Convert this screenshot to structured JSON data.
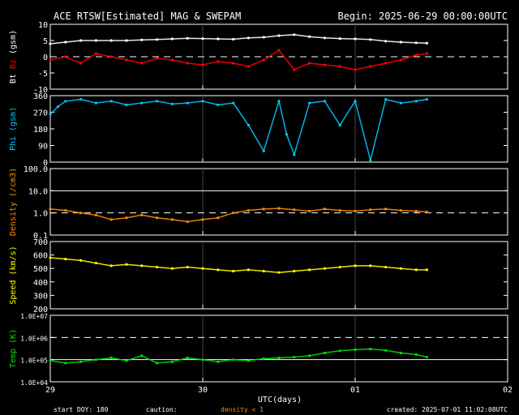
{
  "header": {
    "title": "ACE RTSW[Estimated] MAG & SWEPAM",
    "begin": "Begin: 2025-06-29 00:00:00UTC"
  },
  "footer": {
    "start_doy": "start DOY: 180",
    "caution": "caution:",
    "density_note": "density < 1",
    "created": "created: 2025-07-01 11:02:08UTC"
  },
  "colors": {
    "background": "#000000",
    "axis": "#ffffff",
    "bt": "#ffffff",
    "bz": "#ff0000",
    "phi": "#00c8ff",
    "density": "#ff8c00",
    "speed": "#ffff00",
    "temp": "#00e000"
  },
  "chart_data": [
    {
      "type": "scatter",
      "panel": "mag",
      "ylabel": [
        "Bt",
        "Bz",
        "(gsm)"
      ],
      "ylim": [
        -10,
        10
      ],
      "yticks": [
        "10",
        "5",
        "0",
        "-5",
        "-10"
      ],
      "ytick_values": [
        10,
        5,
        0,
        -5,
        -10
      ],
      "reference_lines": [
        {
          "y": 0,
          "style": "dashed"
        }
      ],
      "series": [
        {
          "name": "Bt",
          "color": "#ffffff",
          "x": [
            0,
            0.1,
            0.2,
            0.3,
            0.4,
            0.5,
            0.6,
            0.7,
            0.8,
            0.9,
            1.0,
            1.1,
            1.2,
            1.3,
            1.4,
            1.5,
            1.6,
            1.7,
            1.8,
            1.9,
            2.0,
            2.1,
            2.2,
            2.3,
            2.4,
            2.47
          ],
          "values": [
            4,
            4.5,
            5,
            5,
            5,
            5,
            5.2,
            5.3,
            5.5,
            5.7,
            5.6,
            5.5,
            5.4,
            5.8,
            6,
            6.5,
            6.8,
            6.2,
            5.8,
            5.6,
            5.5,
            5.3,
            4.8,
            4.5,
            4.3,
            4.2
          ]
        },
        {
          "name": "Bz",
          "color": "#ff0000",
          "x": [
            0,
            0.1,
            0.2,
            0.3,
            0.4,
            0.5,
            0.6,
            0.7,
            0.8,
            0.9,
            1.0,
            1.1,
            1.2,
            1.3,
            1.4,
            1.5,
            1.6,
            1.7,
            1.8,
            1.9,
            2.0,
            2.1,
            2.2,
            2.3,
            2.4,
            2.47
          ],
          "values": [
            -1,
            0,
            -2,
            1,
            0,
            -1,
            -2,
            -0.5,
            -1,
            -2,
            -2.5,
            -1.5,
            -2,
            -3,
            -1,
            2,
            -4,
            -2,
            -2.5,
            -3,
            -4,
            -3,
            -2,
            -1,
            0.5,
            1
          ]
        }
      ]
    },
    {
      "type": "scatter",
      "panel": "phi",
      "ylabel": [
        "Phi (gsm)"
      ],
      "ylim": [
        0,
        360
      ],
      "yticks": [
        "360",
        "270",
        "180",
        "90",
        "0"
      ],
      "ytick_values": [
        360,
        270,
        180,
        90,
        0
      ],
      "series": [
        {
          "name": "Phi",
          "color": "#00c8ff",
          "x": [
            0,
            0.05,
            0.1,
            0.2,
            0.3,
            0.4,
            0.5,
            0.6,
            0.7,
            0.8,
            0.9,
            1.0,
            1.1,
            1.2,
            1.3,
            1.4,
            1.5,
            1.55,
            1.6,
            1.7,
            1.8,
            1.9,
            2.0,
            2.1,
            2.2,
            2.3,
            2.4,
            2.47
          ],
          "values": [
            260,
            300,
            330,
            340,
            320,
            330,
            310,
            320,
            330,
            315,
            320,
            330,
            310,
            320,
            200,
            60,
            330,
            150,
            40,
            320,
            330,
            200,
            330,
            10,
            340,
            320,
            330,
            340
          ]
        }
      ]
    },
    {
      "type": "scatter",
      "panel": "density",
      "ylabel": [
        "Density (/cm3)"
      ],
      "ylim_log10": [
        -1,
        2
      ],
      "yticks": [
        "100.0",
        "10.0",
        "1.0",
        "0.1"
      ],
      "ytick_values": [
        100,
        10,
        1,
        0.1
      ],
      "reference_lines": [
        {
          "y": 10,
          "style": "solid"
        },
        {
          "y": 1,
          "style": "dashed"
        }
      ],
      "series": [
        {
          "name": "Density",
          "color": "#ff8c00",
          "x": [
            0,
            0.1,
            0.2,
            0.3,
            0.4,
            0.5,
            0.6,
            0.7,
            0.8,
            0.9,
            1.0,
            1.1,
            1.2,
            1.3,
            1.4,
            1.5,
            1.6,
            1.7,
            1.8,
            1.9,
            2.0,
            2.1,
            2.2,
            2.3,
            2.4,
            2.47
          ],
          "values": [
            1.5,
            1.3,
            1.0,
            0.8,
            0.5,
            0.6,
            0.8,
            0.6,
            0.5,
            0.4,
            0.5,
            0.6,
            1.0,
            1.3,
            1.5,
            1.6,
            1.4,
            1.2,
            1.5,
            1.3,
            1.2,
            1.4,
            1.5,
            1.3,
            1.2,
            1.1
          ]
        }
      ]
    },
    {
      "type": "scatter",
      "panel": "speed",
      "ylabel": [
        "Speed (km/s)"
      ],
      "ylim": [
        200,
        700
      ],
      "yticks": [
        "700",
        "600",
        "500",
        "400",
        "300",
        "200"
      ],
      "ytick_values": [
        700,
        600,
        500,
        400,
        300,
        200
      ],
      "series": [
        {
          "name": "Speed",
          "color": "#ffff00",
          "x": [
            0,
            0.1,
            0.2,
            0.3,
            0.4,
            0.5,
            0.6,
            0.7,
            0.8,
            0.9,
            1.0,
            1.1,
            1.2,
            1.3,
            1.4,
            1.5,
            1.6,
            1.7,
            1.8,
            1.9,
            2.0,
            2.1,
            2.2,
            2.3,
            2.4,
            2.47
          ],
          "values": [
            580,
            570,
            560,
            540,
            520,
            530,
            520,
            510,
            500,
            510,
            500,
            490,
            480,
            490,
            480,
            470,
            480,
            490,
            500,
            510,
            520,
            520,
            510,
            500,
            490,
            490
          ]
        }
      ]
    },
    {
      "type": "scatter",
      "panel": "temp",
      "ylabel": [
        "Temp (K)"
      ],
      "ylim_log10": [
        4,
        7
      ],
      "yticks": [
        "1.0E+07",
        "1.0E+06",
        "1.0E+05",
        "1.0E+04"
      ],
      "ytick_values": [
        10000000,
        1000000,
        100000,
        10000
      ],
      "reference_lines": [
        {
          "y": 1000000,
          "style": "dashed"
        },
        {
          "y": 100000,
          "style": "solid"
        }
      ],
      "series": [
        {
          "name": "Temp",
          "color": "#00e000",
          "x": [
            0,
            0.1,
            0.2,
            0.3,
            0.4,
            0.5,
            0.6,
            0.7,
            0.8,
            0.9,
            1.0,
            1.1,
            1.2,
            1.3,
            1.4,
            1.5,
            1.6,
            1.7,
            1.8,
            1.9,
            2.0,
            2.1,
            2.2,
            2.3,
            2.4,
            2.47
          ],
          "values": [
            90000,
            70000,
            80000,
            100000,
            120000,
            90000,
            150000,
            70000,
            80000,
            120000,
            100000,
            80000,
            100000,
            90000,
            110000,
            120000,
            130000,
            150000,
            200000,
            250000,
            280000,
            300000,
            260000,
            200000,
            170000,
            130000
          ]
        }
      ]
    }
  ],
  "x_axis": {
    "xlabel": "UTC(days)",
    "ticks": [
      "29",
      "30",
      "01",
      "02"
    ],
    "tick_values": [
      0,
      1,
      2,
      3
    ],
    "xlim": [
      0,
      3
    ]
  }
}
